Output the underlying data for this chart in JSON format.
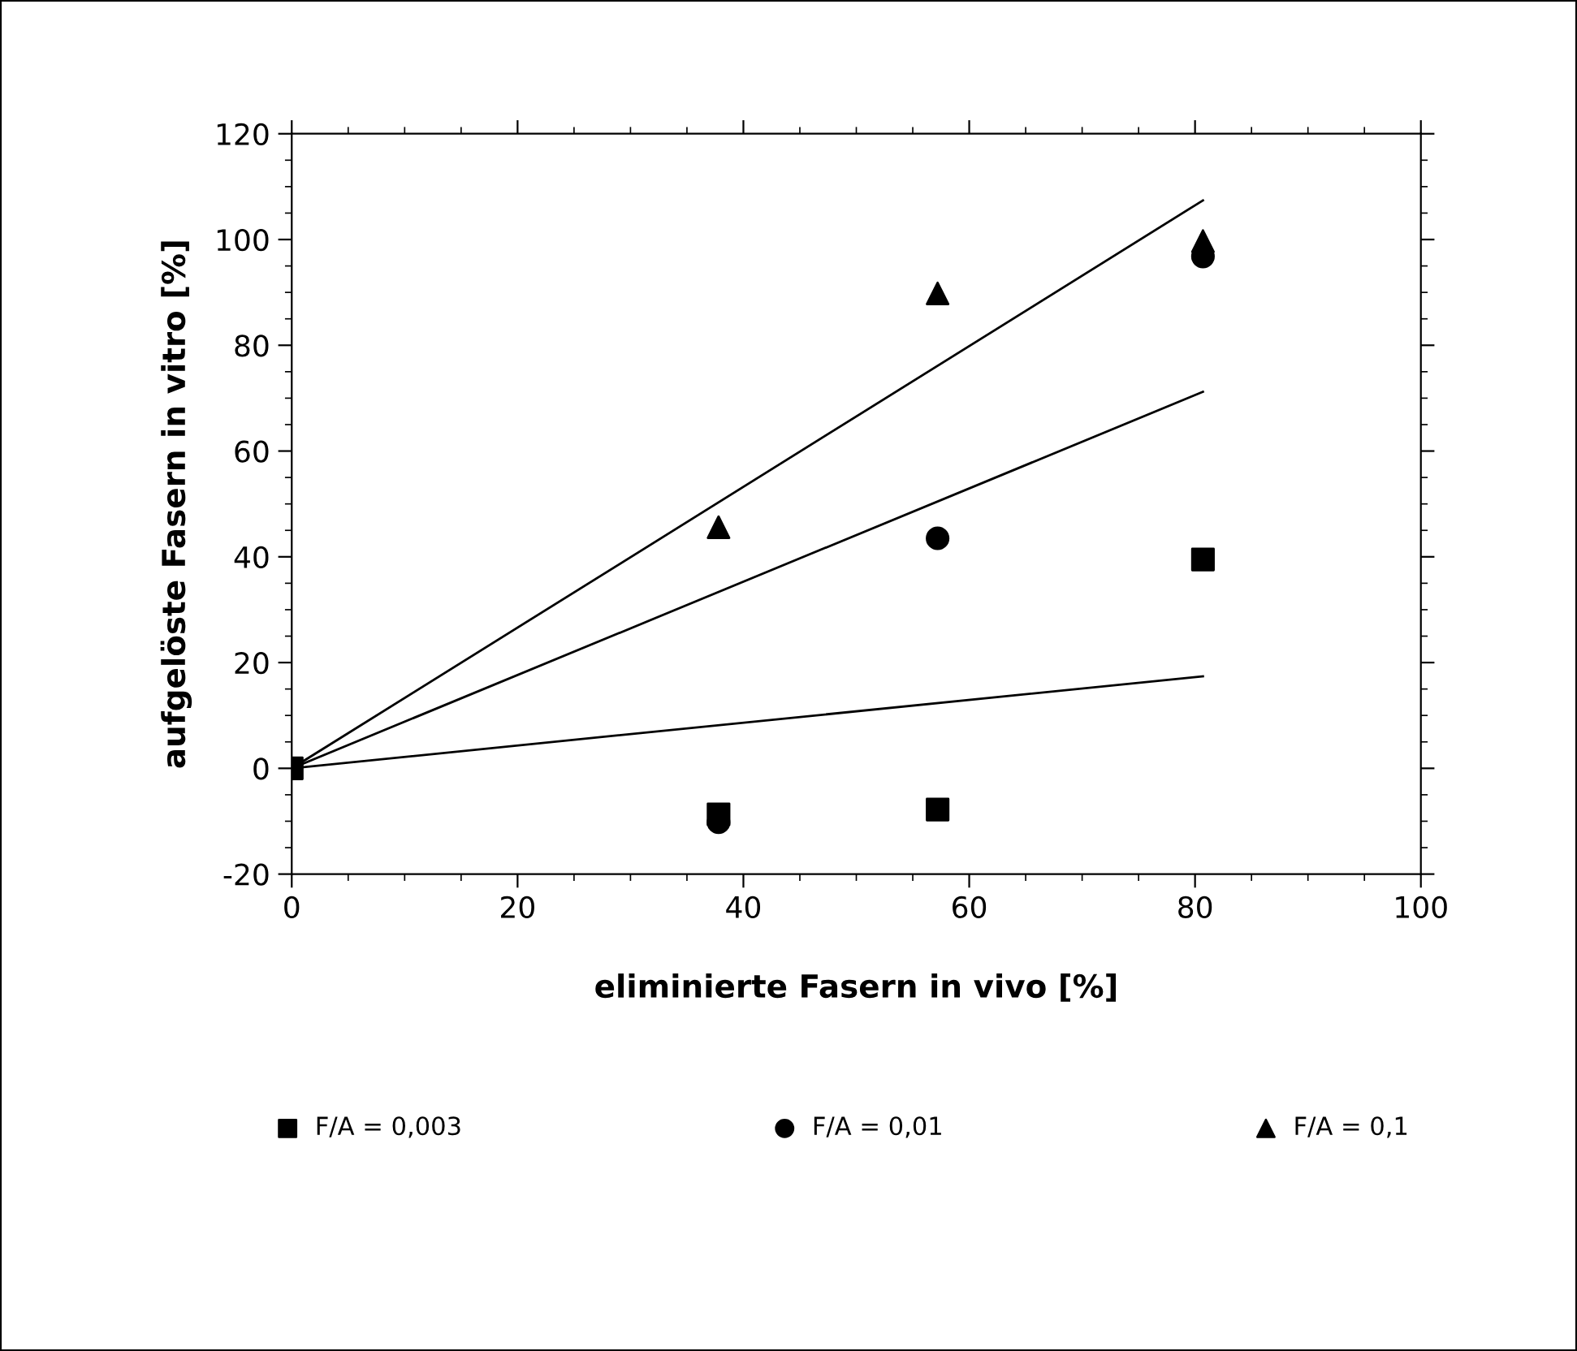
{
  "chart_data": {
    "type": "scatter",
    "xlabel": "eliminierte Fasern in vivo [%]",
    "ylabel": "aufgelöste Fasern in vitro [%]",
    "xlim": [
      0,
      100
    ],
    "xticks": [
      0,
      20,
      40,
      60,
      80,
      100
    ],
    "ylim": [
      -20,
      120
    ],
    "yticks": [
      -20,
      0,
      20,
      40,
      60,
      80,
      100,
      120
    ],
    "grid": false,
    "legend": "bottom",
    "series": [
      {
        "name": "F/A = 0,003",
        "color": "#000000",
        "marker": "square",
        "x": [
          0,
          37.8,
          57.2,
          80.7
        ],
        "values": [
          0,
          -8.7,
          -7.8,
          39.5
        ]
      },
      {
        "name": "F/A = 0,01",
        "color": "#000000",
        "marker": "circle",
        "x": [
          37.8,
          57.2,
          80.7
        ],
        "values": [
          -10.2,
          43.5,
          96.8
        ]
      },
      {
        "name": "F/A = 0,1",
        "color": "#000000",
        "marker": "triangle",
        "x": [
          37.8,
          57.2,
          80.7
        ],
        "values": [
          45.6,
          89.8,
          99.7
        ]
      },
      {
        "type": "line",
        "color": "#000000",
        "x": [
          0,
          80.7
        ],
        "values": [
          0,
          107.4
        ]
      },
      {
        "type": "line",
        "color": "#000000",
        "x": [
          0,
          80.7
        ],
        "values": [
          0,
          71.2
        ]
      },
      {
        "type": "line",
        "color": "#000000",
        "x": [
          0,
          80.7
        ],
        "values": [
          0,
          17.4
        ]
      }
    ]
  }
}
